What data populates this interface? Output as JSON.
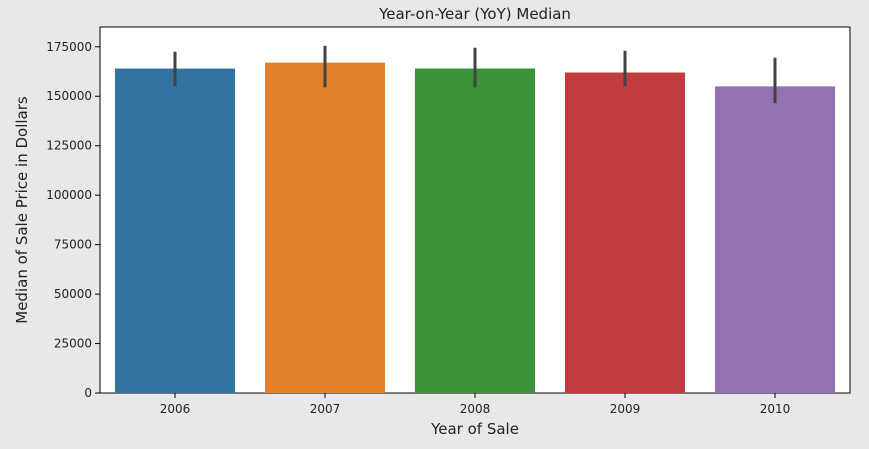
{
  "chart_data": {
    "type": "bar",
    "title": "Year-on-Year (YoY) Median",
    "xlabel": "Year of Sale",
    "ylabel": "Median of Sale Price in Dollars",
    "categories": [
      "2006",
      "2007",
      "2008",
      "2009",
      "2010"
    ],
    "values": [
      163995,
      167000,
      164000,
      162000,
      155000
    ],
    "error_low": [
      155000,
      154500,
      154500,
      155000,
      146500
    ],
    "error_high": [
      172500,
      175500,
      174500,
      173000,
      169500
    ],
    "colors": [
      "#3274a1",
      "#e1812c",
      "#3a923a",
      "#c03d3e",
      "#9372b2"
    ],
    "ylim": [
      0,
      185000
    ],
    "yticks": [
      0,
      25000,
      50000,
      75000,
      100000,
      125000,
      150000,
      175000
    ],
    "ytick_labels": [
      "0",
      "25000",
      "50000",
      "75000",
      "100000",
      "125000",
      "150000",
      "175000"
    ],
    "grid": false,
    "legend": "none"
  }
}
